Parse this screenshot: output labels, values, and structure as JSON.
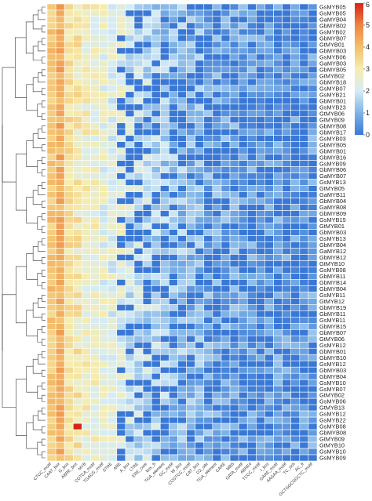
{
  "chart_data": {
    "type": "heatmap",
    "rows": [
      "GsMYB05",
      "GsMYB05",
      "GaMYB04",
      "GbMYB02",
      "GsMYB02",
      "GbMYB07",
      "GtMYB01",
      "GbMYB03",
      "GsMYB06",
      "GaMYB03",
      "GbMYB05",
      "GtMYB02",
      "GbMYB18",
      "GsMYB07",
      "GsMYB21",
      "GbMYB01",
      "GsMYB23",
      "GtMYB06",
      "GtMYB09",
      "GbMYB08",
      "GbMYB17",
      "GsMYB03",
      "GbMYB05",
      "GbMYB01",
      "GbMYB16",
      "GsMYB09",
      "GbMYB06",
      "GaMYB07",
      "GsMYB13",
      "GtMYB05",
      "GaMYB11",
      "GbMYB04",
      "GaMYB08",
      "GbMYB09",
      "GsMYB15",
      "GtMYB01",
      "GbMYB03",
      "GsMYB13",
      "GbMYB04",
      "GaMYB12",
      "GbMYB12",
      "GtMYB10",
      "GsMYB08",
      "GbMYB11",
      "GbMYB14",
      "GbMYB04",
      "GsMYB11",
      "GtMYB12",
      "GbMYB19",
      "GbMYB11",
      "GsMYB11",
      "GbMYB15",
      "GbMYB07",
      "GtMYB06",
      "GsMYB12",
      "GbMYB01",
      "GbMYB10",
      "GsMYB12",
      "GbMYB03",
      "GbMYB04",
      "GsMYB10",
      "GsMYB07",
      "GtMYB02",
      "GsMYB06",
      "GtMYB13",
      "GsMYB12",
      "GsMYB22",
      "GsMYB08",
      "GbMYB08",
      "GtMYB09",
      "GtMYB10",
      "GsMYB10",
      "GsMYB09"
    ],
    "columns": [
      "CTCC_motif",
      "CAAT_box",
      "G_box",
      "ABRE_box",
      "MYB",
      "CGTCA_motif",
      "TGACG_motif",
      "STRE",
      "ARE",
      "A_box",
      "LTRE",
      "ERE_core",
      "box_S",
      "TGA_element",
      "GC_motif",
      "W_box",
      "CCGTCC_motif",
      "CAT_box",
      "O2_site",
      "TGA_element",
      "CARE",
      "MBS",
      "GATA_motif",
      "ABRE4",
      "TCCC_motif",
      "I_box",
      "GARE_motif",
      "AAGAA_motif",
      "TC_rich",
      "AC_II",
      "GCTGGCGGCTC_motif"
    ],
    "color_scale": {
      "min": 0,
      "max": 6,
      "ticks": [
        "0",
        "1",
        "2",
        "3",
        "4",
        "5",
        "6"
      ],
      "stops": [
        "#3a78d6",
        "#7fb3e6",
        "#d6ecf5",
        "#f5edb0",
        "#f3bf6b",
        "#ee8540",
        "#d62418"
      ]
    },
    "grid": true,
    "legend_position": "top-right",
    "dendrogram": "left",
    "values": []
  }
}
